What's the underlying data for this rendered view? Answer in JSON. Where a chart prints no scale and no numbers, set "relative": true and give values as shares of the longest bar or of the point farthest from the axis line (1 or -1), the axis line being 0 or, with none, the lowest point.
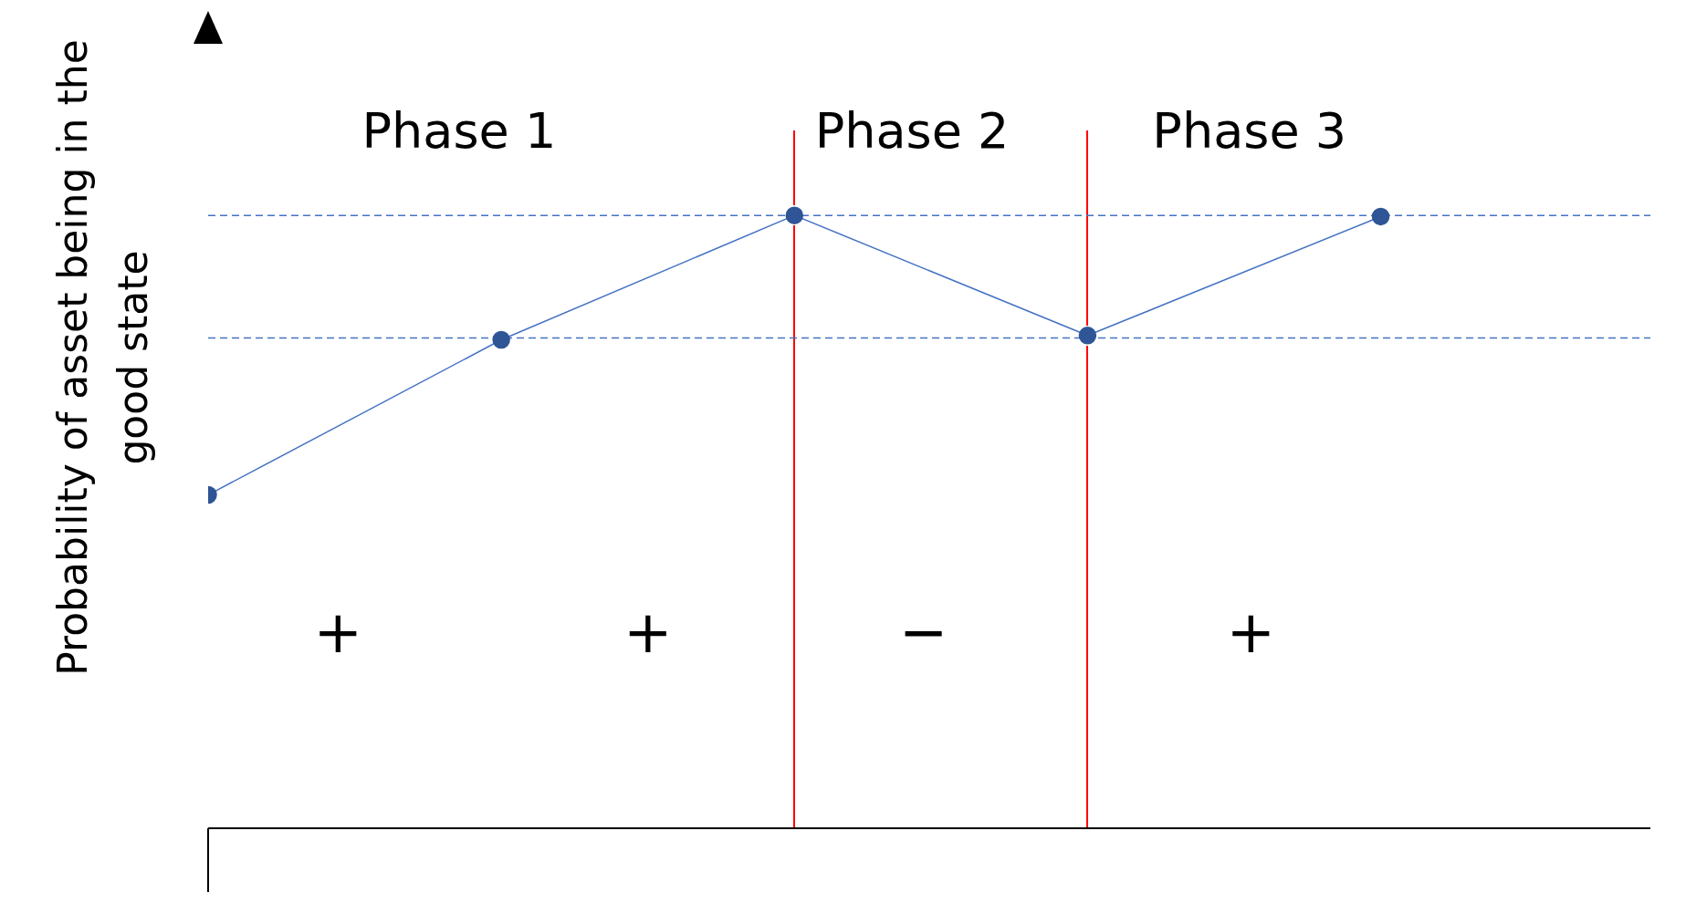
{
  "chart_data": {
    "type": "line",
    "relative": true,
    "ylabel": "Probability of asset being in the good state",
    "categories": [
      null,
      null,
      null,
      null,
      null
    ],
    "series": [
      {
        "color": "#4472c4",
        "values": [
          0.544,
          0.797,
          1,
          0.804,
          0.998
        ]
      }
    ],
    "marker": "circle",
    "line_style": "solid",
    "ref_lines": [
      {
        "axis": "y",
        "value": 0.8,
        "color": "#4472c4",
        "line_style": "dashed"
      },
      {
        "axis": "y",
        "value": 1,
        "color": "#4472c4",
        "line_style": "dashed"
      }
    ],
    "annotations": [
      "Phase 1",
      "Phase 2",
      "Phase 3",
      "+",
      "+",
      "−",
      "+"
    ]
  }
}
